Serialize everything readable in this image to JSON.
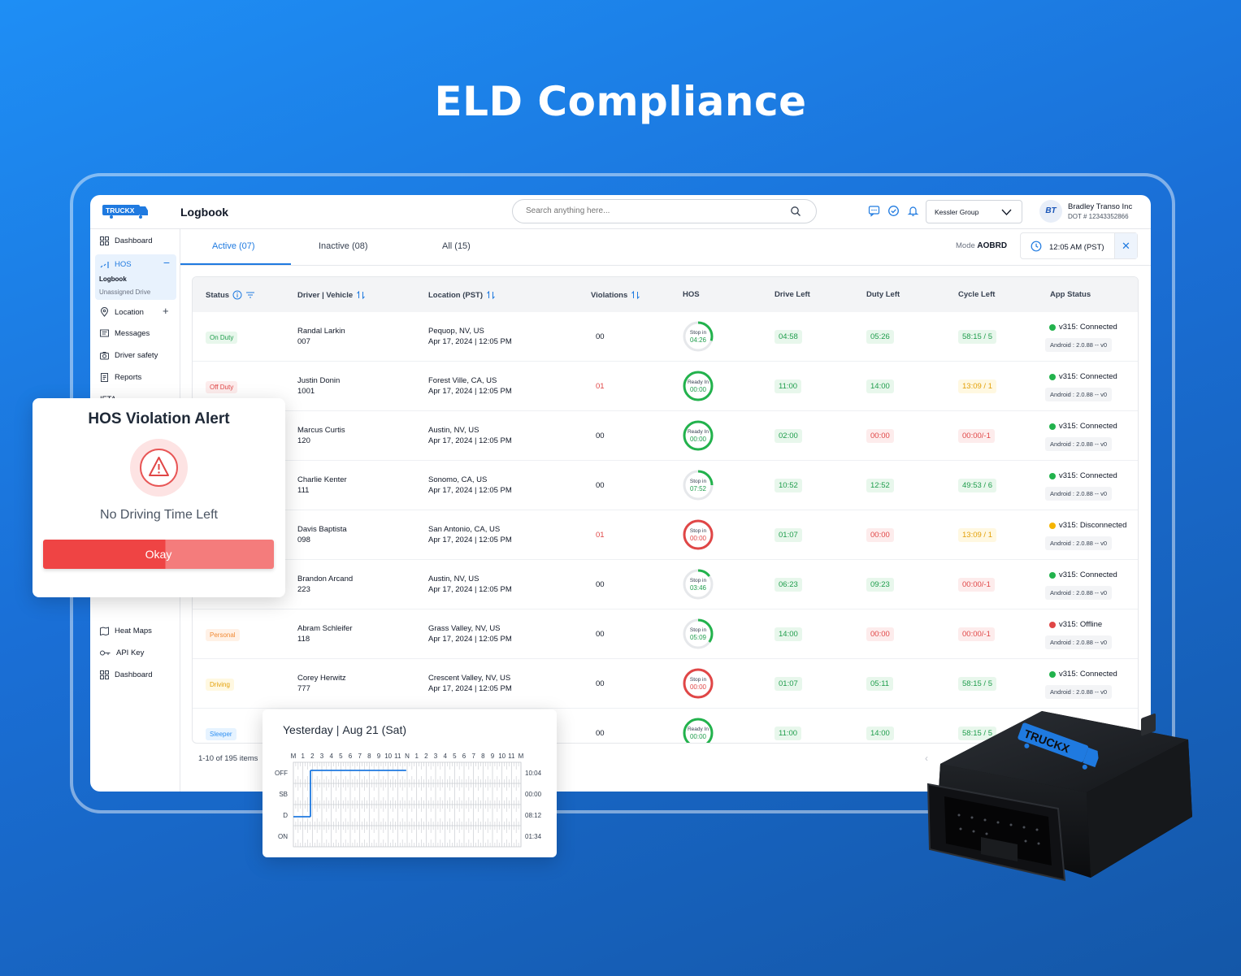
{
  "hero_title": "ELD Compliance",
  "app": {
    "logo_text": "TRUCKX",
    "page_title": "Logbook",
    "search": {
      "placeholder": "Search anything here..."
    },
    "org_select": {
      "value": "Kessler Group"
    },
    "user": {
      "initials": "BT",
      "company": "Bradley Transo Inc",
      "dot": "DOT # 12343352866"
    }
  },
  "sidebar": {
    "dashboard": "Dashboard",
    "hos": "HOS",
    "logbook": "Logbook",
    "unassigned": "Unassigned Drive",
    "location": "Location",
    "messages": "Messages",
    "driver_safety": "Driver safety",
    "reports": "Reports",
    "ifta": "IFTA",
    "heat_maps": "Heat Maps",
    "api_key": "API Key",
    "dashboard2": "Dashboard"
  },
  "tabs": {
    "active": "Active (07)",
    "inactive": "Inactive (08)",
    "all": "All (15)"
  },
  "mode": {
    "label": "Mode",
    "value": "AOBRD"
  },
  "time": "12:05 AM (PST)",
  "table": {
    "headers": {
      "status": "Status",
      "driver": "Driver | Vehicle",
      "location": "Location (PST)",
      "violations": "Violations",
      "hos": "HOS",
      "drive_left": "Drive Left",
      "duty_left": "Duty Left",
      "cycle_left": "Cycle Left",
      "app_status": "App Status"
    },
    "rows": [
      {
        "status": "On Duty",
        "status_class": "b-green",
        "driver": "Randal Larkin",
        "vehicle": "007",
        "city": "Pequop, NV, US",
        "date": "Apr 17, 2024 | 12:05 PM",
        "violations": "00",
        "viol_color": "#111827",
        "hos_label": "Stop in",
        "hos_value": "04:26",
        "hos_color": "#22b24c",
        "hos_progress": 0.3,
        "drive": "04:58",
        "drive_c": "p-green",
        "duty": "05:26",
        "duty_c": "p-green",
        "cycle": "58:15 / 5",
        "cycle_c": "p-green",
        "app": "v315: Connected",
        "app_color": "#22b24c",
        "android": "Android : 2.0.88 -- v0"
      },
      {
        "status": "Off Duty",
        "status_class": "b-red",
        "driver": "Justin Donin",
        "vehicle": "1001",
        "city": "Forest Ville, CA, US",
        "date": "Apr 17, 2024 | 12:05 PM",
        "violations": "01",
        "viol_color": "#e04646",
        "hos_label": "Ready In",
        "hos_value": "00:00",
        "hos_color": "#22b24c",
        "hos_progress": 1,
        "drive": "11:00",
        "drive_c": "p-green",
        "duty": "14:00",
        "duty_c": "p-green",
        "cycle": "13:09 / 1",
        "cycle_c": "p-yellow",
        "app": "v315: Connected",
        "app_color": "#22b24c",
        "android": "Android : 2.0.88 -- v0"
      },
      {
        "status": "",
        "status_class": "",
        "driver": "Marcus Curtis",
        "vehicle": "120",
        "city": "Austin, NV, US",
        "date": "Apr 17, 2024 | 12:05 PM",
        "violations": "00",
        "viol_color": "#111827",
        "hos_label": "Ready In",
        "hos_value": "00:00",
        "hos_color": "#22b24c",
        "hos_progress": 1,
        "drive": "02:00",
        "drive_c": "p-green",
        "duty": "00:00",
        "duty_c": "p-red",
        "cycle": "00:00/-1",
        "cycle_c": "p-red",
        "app": "v315: Connected",
        "app_color": "#22b24c",
        "android": "Android : 2.0.88 -- v0"
      },
      {
        "status": "",
        "status_class": "",
        "driver": "Charlie Kenter",
        "vehicle": "111",
        "city": "Sonomo, CA, US",
        "date": "Apr 17, 2024 | 12:05 PM",
        "violations": "00",
        "viol_color": "#111827",
        "hos_label": "Stop in",
        "hos_value": "07:52",
        "hos_color": "#22b24c",
        "hos_progress": 0.25,
        "drive": "10:52",
        "drive_c": "p-green",
        "duty": "12:52",
        "duty_c": "p-green",
        "cycle": "49:53 / 6",
        "cycle_c": "p-green",
        "app": "v315: Connected",
        "app_color": "#22b24c",
        "android": "Android : 2.0.88 -- v0"
      },
      {
        "status": "",
        "status_class": "",
        "driver": "Davis Baptista",
        "vehicle": "098",
        "city": "San Antonio, CA, US",
        "date": "Apr 17, 2024 | 12:05 PM",
        "violations": "01",
        "viol_color": "#e04646",
        "hos_label": "Stop in",
        "hos_value": "00:00",
        "hos_color": "#e04646",
        "hos_progress": 1,
        "drive": "01:07",
        "drive_c": "p-green",
        "duty": "00:00",
        "duty_c": "p-red",
        "cycle": "13:09 / 1",
        "cycle_c": "p-yellow",
        "app": "v315: Disconnected",
        "app_color": "#f5b400",
        "android": "Android : 2.0.88 -- v0"
      },
      {
        "status": "",
        "status_class": "",
        "driver": "Brandon Arcand",
        "vehicle": "223",
        "city": "Austin, NV, US",
        "date": "Apr 17, 2024 | 12:05 PM",
        "violations": "00",
        "viol_color": "#111827",
        "hos_label": "Stop in",
        "hos_value": "03:46",
        "hos_color": "#22b24c",
        "hos_progress": 0.15,
        "drive": "06:23",
        "drive_c": "p-green",
        "duty": "09:23",
        "duty_c": "p-green",
        "cycle": "00:00/-1",
        "cycle_c": "p-red",
        "app": "v315: Connected",
        "app_color": "#22b24c",
        "android": "Android : 2.0.88 -- v0"
      },
      {
        "status": "Personal",
        "status_class": "b-orange",
        "driver": "Abram Schleifer",
        "vehicle": "118",
        "city": "Grass Valley, NV, US",
        "date": "Apr 17, 2024 | 12:05 PM",
        "violations": "00",
        "viol_color": "#111827",
        "hos_label": "Stop in",
        "hos_value": "05:09",
        "hos_color": "#22b24c",
        "hos_progress": 0.35,
        "drive": "14:00",
        "drive_c": "p-green",
        "duty": "00:00",
        "duty_c": "p-red",
        "cycle": "00:00/-1",
        "cycle_c": "p-red",
        "app": "v315: Offline",
        "app_color": "#e04646",
        "android": "Android : 2.0.88 -- v0"
      },
      {
        "status": "Driving",
        "status_class": "b-yellow",
        "driver": "Corey Herwitz",
        "vehicle": "777",
        "city": "Crescent Valley, NV, US",
        "date": "Apr 17, 2024 | 12:05 PM",
        "violations": "00",
        "viol_color": "#111827",
        "hos_label": "Stop in",
        "hos_value": "00:00",
        "hos_color": "#e04646",
        "hos_progress": 1,
        "drive": "01:07",
        "drive_c": "p-green",
        "duty": "05:11",
        "duty_c": "p-green",
        "cycle": "58:15 / 5",
        "cycle_c": "p-green",
        "app": "v315: Connected",
        "app_color": "#22b24c",
        "android": "Android : 2.0.88 -- v0"
      },
      {
        "status": "Sleeper",
        "status_class": "b-blue",
        "driver": "",
        "vehicle": "",
        "city": "",
        "date": "",
        "violations": "00",
        "viol_color": "#111827",
        "hos_label": "Ready In",
        "hos_value": "00:00",
        "hos_color": "#22b24c",
        "hos_progress": 1,
        "drive": "11:00",
        "drive_c": "p-green",
        "duty": "14:00",
        "duty_c": "p-green",
        "cycle": "58:15 / 5",
        "cycle_c": "p-green",
        "app": "",
        "app_color": "#22b24c",
        "android": ""
      }
    ],
    "pager": "1-10 of 195 items"
  },
  "alert": {
    "title": "HOS Violation Alert",
    "message": "No Driving Time Left",
    "button": "Okay"
  },
  "log_chart": {
    "day": "Yesterday",
    "date": "Aug 21 (Sat)",
    "hours": [
      "M",
      "1",
      "2",
      "3",
      "4",
      "5",
      "6",
      "7",
      "8",
      "9",
      "10",
      "11",
      "N",
      "1",
      "2",
      "3",
      "4",
      "5",
      "6",
      "7",
      "8",
      "9",
      "10",
      "11",
      "M"
    ],
    "rows": [
      {
        "label": "OFF",
        "total": "10:04"
      },
      {
        "label": "SB",
        "total": "00:00"
      },
      {
        "label": "D",
        "total": "08:12"
      },
      {
        "label": "ON",
        "total": "01:34"
      }
    ]
  },
  "chart_data": {
    "type": "line",
    "title": "Yesterday | Aug 21 (Sat)",
    "x_unit": "hour of day",
    "xlim": [
      0,
      24
    ],
    "y_categories": [
      "OFF",
      "SB",
      "D",
      "ON"
    ],
    "segments": [
      {
        "status": "D",
        "start": 0,
        "end": 1.8
      },
      {
        "status": "OFF",
        "start": 1.8,
        "end": 11.9
      }
    ]
  },
  "device_label": "TRUCKX"
}
